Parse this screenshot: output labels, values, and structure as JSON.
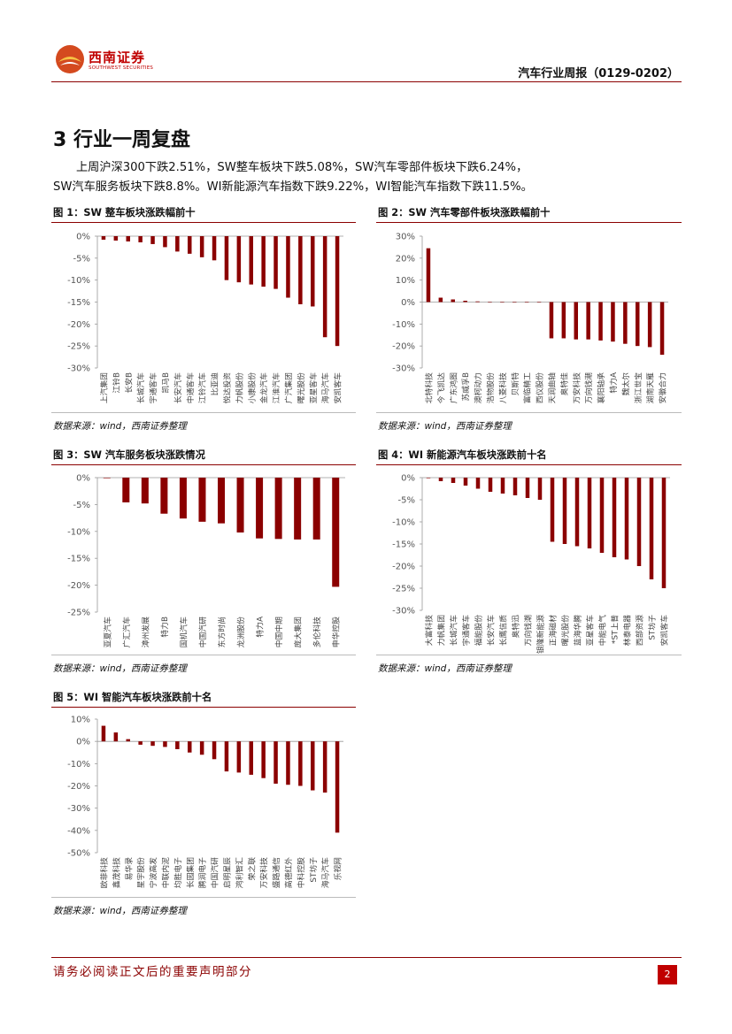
{
  "header": {
    "logo_cn": "西南证券",
    "logo_en": "SOUTHWEST SECURITIES",
    "report_title": "汽车行业周报（0129-0202）"
  },
  "section": {
    "title": "3 行业一周复盘",
    "para_line1": "上周沪深300下跌2.51%，SW整车板块下跌5.08%，SW汽车零部件板块下跌6.24%，",
    "para_line2": "SW汽车服务板块下跌8.8%。WI新能源汽车指数下跌9.22%，WI智能汽车指数下跌11.5%。"
  },
  "colors": {
    "bar": "#8b0000",
    "accent": "#c00000"
  },
  "figures": [
    {
      "title": "图 1：SW 整车板块涨跌幅前十",
      "source": "数据来源：wind，西南证券整理"
    },
    {
      "title": "图 2：SW 汽车零部件板块涨跌幅前十",
      "source": "数据来源：wind，西南证券整理"
    },
    {
      "title": "图 3：SW 汽车服务板块涨跌情况",
      "source": "数据来源：wind，西南证券整理"
    },
    {
      "title": "图 4：WI 新能源汽车板块涨跌前十名",
      "source": "数据来源：wind，西南证券整理"
    },
    {
      "title": "图 5：WI 智能汽车板块涨跌前十名",
      "source": "数据来源：wind，西南证券整理"
    }
  ],
  "chart_data": [
    {
      "type": "bar",
      "title": "SW 整车板块涨跌幅前十",
      "yticks": [
        "0%",
        "-5%",
        "-10%",
        "-15%",
        "-20%",
        "-25%",
        "-30%"
      ],
      "ylim": [
        -30,
        0
      ],
      "categories": [
        "上汽集团",
        "江铃B",
        "长安B",
        "长城汽车",
        "宇通客车",
        "凯马B",
        "长安汽车",
        "中通客车",
        "江铃汽车",
        "比亚迪",
        "悦达投资",
        "力帆股份",
        "小康股份",
        "金龙汽车",
        "江淮汽车",
        "广汽集团",
        "曙光股份",
        "亚星客车",
        "海马汽车",
        "安凯客车"
      ],
      "values": [
        -0.8,
        -1.0,
        -1.2,
        -1.4,
        -1.8,
        -2.5,
        -3.5,
        -4.0,
        -4.8,
        -5.5,
        -10.0,
        -10.5,
        -11.0,
        -11.5,
        -12.0,
        -14.0,
        -15.5,
        -16.0,
        -23.0,
        -25.0
      ]
    },
    {
      "type": "bar",
      "title": "SW 汽车零部件板块涨跌幅前十",
      "yticks": [
        "30%",
        "20%",
        "10%",
        "0%",
        "-10%",
        "-20%",
        "-30%"
      ],
      "ylim": [
        -30,
        30
      ],
      "categories": [
        "北特科技",
        "今飞凯达",
        "广东鸿图",
        "苏威孚B",
        "澳柯动力",
        "浩物股份",
        "八菱科技",
        "贝斯特",
        "富临精工",
        "西仪股份",
        "天润曲轴",
        "奥特佳",
        "万安科技",
        "万向钱潮",
        "襄阳轴承",
        "特力A",
        "魏太尔",
        "浙江世宝",
        "湖南天雁",
        "安徽合力"
      ],
      "values": [
        24.5,
        2.0,
        1.2,
        0.6,
        0.3,
        0,
        0,
        0,
        0,
        0,
        -16.5,
        -16.5,
        -17.0,
        -17.0,
        -17.5,
        -18.0,
        -19.0,
        -20.0,
        -20.5,
        -24.0
      ]
    },
    {
      "type": "bar",
      "title": "SW 汽车服务板块涨跌情况",
      "yticks": [
        "0%",
        "-5%",
        "-10%",
        "-15%",
        "-20%",
        "-25%"
      ],
      "ylim": [
        -25,
        0
      ],
      "categories": [
        "亚夏汽车",
        "广汇汽车",
        "漳州发展",
        "特力B",
        "国机汽车",
        "中国汽研",
        "东方时尚",
        "龙洲股份",
        "特力A",
        "中国中期",
        "庞大集团",
        "多伦科技",
        "申华控股"
      ],
      "values": [
        0,
        -4.6,
        -4.8,
        -6.7,
        -7.6,
        -8.2,
        -8.5,
        -10.2,
        -11.3,
        -11.4,
        -11.5,
        -11.5,
        -20.3
      ]
    },
    {
      "type": "bar",
      "title": "WI 新能源汽车板块涨跌前十名",
      "yticks": [
        "0%",
        "-5%",
        "-10%",
        "-15%",
        "-20%",
        "-25%",
        "-30%"
      ],
      "ylim": [
        -30,
        0
      ],
      "categories": [
        "大富科技",
        "力帆集团",
        "长城汽车",
        "宇通客车",
        "福能股份",
        "长安汽车",
        "长鹰信质",
        "奥特迅",
        "万向钱潮",
        "银隆新能源",
        "正海磁材",
        "曙光股份",
        "蓝海华腾",
        "亚星客车",
        "中能电气",
        "*ST上普",
        "林泰电器",
        "西部资源",
        "ST坊子",
        "安凯客车"
      ],
      "values": [
        0,
        -0.8,
        -1.2,
        -1.8,
        -2.5,
        -3.2,
        -3.6,
        -4.0,
        -4.6,
        -5.0,
        -14.5,
        -15.0,
        -15.5,
        -16.0,
        -17.0,
        -18.0,
        -18.5,
        -20.0,
        -23.0,
        -25.0
      ]
    },
    {
      "type": "bar",
      "title": "WI 智能汽车板块涨跌前十名",
      "yticks": [
        "10%",
        "0%",
        "-10%",
        "-20%",
        "-30%",
        "-40%",
        "-50%"
      ],
      "ylim": [
        -50,
        10
      ],
      "categories": [
        "欧菲科技",
        "鑫茂科技",
        "易华录",
        "星宇股份",
        "宁波高发",
        "中联内泥",
        "均胜电子",
        "长园集团",
        "腾润电子",
        "中国汽研",
        "启明星辰",
        "鸿利智汇",
        "荣之联",
        "万安科技",
        "盛路通信",
        "高德红外",
        "中科控股",
        "ST坊子",
        "海马汽车",
        "乐视网"
      ],
      "values": [
        7.0,
        4.0,
        1.0,
        -1.5,
        -2.0,
        -2.5,
        -3.5,
        -5.0,
        -6.0,
        -8.0,
        -13.5,
        -14.0,
        -15.0,
        -16.5,
        -19.0,
        -19.5,
        -20.0,
        -22.0,
        -23.0,
        -41.0
      ]
    }
  ],
  "footer": {
    "disclaimer": "请务必阅读正文后的重要声明部分",
    "page": "2"
  }
}
